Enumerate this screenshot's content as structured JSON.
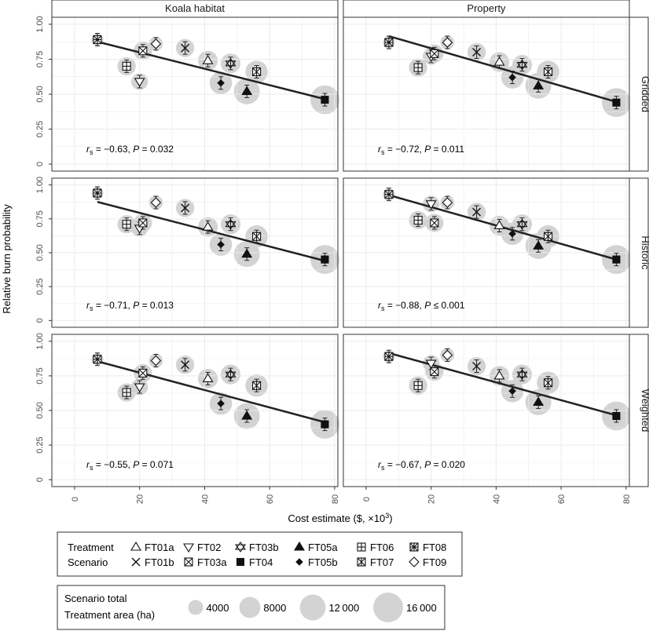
{
  "chart_data": {
    "type": "scatter",
    "xlabel": "Cost estimate ($, ×10",
    "xlabel_sup": "3",
    "xlabel_end": ")",
    "ylabel": "Relative burn probability",
    "xlim": [
      -7,
      81
    ],
    "ylim": [
      -0.05,
      1.05
    ],
    "xticks": [
      "0",
      "20",
      "40",
      "60",
      "80"
    ],
    "yticks": [
      "0",
      "0.25",
      "0.50",
      "0.75",
      "1.00"
    ],
    "columns": [
      "Koala habitat",
      "Property"
    ],
    "rows": [
      "Gridded",
      "Historic",
      "Weighted"
    ],
    "grid": true,
    "scenarios": [
      {
        "code": "FT01a",
        "cost": 41,
        "area": 7000,
        "marker": "tri-up-open"
      },
      {
        "code": "FT01b",
        "cost": 34,
        "area": 6000,
        "marker": "x"
      },
      {
        "code": "FT02",
        "cost": 20,
        "area": 5000,
        "marker": "tri-down-open"
      },
      {
        "code": "FT03a",
        "cost": 21,
        "area": 6000,
        "marker": "square-x"
      },
      {
        "code": "FT03b",
        "cost": 48,
        "area": 7000,
        "marker": "star-open"
      },
      {
        "code": "FT04",
        "cost": 77,
        "area": 15000,
        "marker": "square-filled"
      },
      {
        "code": "FT05a",
        "cost": 53,
        "area": 12000,
        "marker": "tri-up-filled"
      },
      {
        "code": "FT05b",
        "cost": 45,
        "area": 9000,
        "marker": "diamond-filled"
      },
      {
        "code": "FT06",
        "cost": 16,
        "area": 6000,
        "marker": "square-plus"
      },
      {
        "code": "FT07",
        "cost": 56,
        "area": 9000,
        "marker": "square-cross"
      },
      {
        "code": "FT08",
        "cost": 7,
        "area": 2500,
        "marker": "square-star"
      },
      {
        "code": "FT09",
        "cost": 25,
        "area": 3500,
        "marker": "diamond-open"
      }
    ],
    "panels": [
      {
        "row": "Gridded",
        "col": "Koala habitat",
        "stat_r": "= −0.63, ",
        "stat_p": " = 0.032",
        "fit": [
          0.875,
          0.465
        ],
        "y": {
          "FT01a": 0.74,
          "FT01b": 0.83,
          "FT02": 0.59,
          "FT03a": 0.81,
          "FT03b": 0.72,
          "FT04": 0.46,
          "FT05a": 0.52,
          "FT05b": 0.58,
          "FT06": 0.7,
          "FT07": 0.66,
          "FT08": 0.89,
          "FT09": 0.86
        }
      },
      {
        "row": "Gridded",
        "col": "Property",
        "stat_r": "= −0.72, ",
        "stat_p": " = 0.011",
        "fit": [
          0.915,
          0.445
        ],
        "y": {
          "FT01a": 0.73,
          "FT01b": 0.8,
          "FT02": 0.77,
          "FT03a": 0.79,
          "FT03b": 0.71,
          "FT04": 0.44,
          "FT05a": 0.56,
          "FT05b": 0.62,
          "FT06": 0.69,
          "FT07": 0.66,
          "FT08": 0.87,
          "FT09": 0.87
        }
      },
      {
        "row": "Historic",
        "col": "Koala habitat",
        "stat_r": "= −0.71, ",
        "stat_p": " = 0.013",
        "fit": [
          0.875,
          0.44
        ],
        "y": {
          "FT01a": 0.69,
          "FT01b": 0.83,
          "FT02": 0.68,
          "FT03a": 0.72,
          "FT03b": 0.71,
          "FT04": 0.45,
          "FT05a": 0.49,
          "FT05b": 0.56,
          "FT06": 0.71,
          "FT07": 0.62,
          "FT08": 0.94,
          "FT09": 0.87
        }
      },
      {
        "row": "Historic",
        "col": "Property",
        "stat_r": "= −0.88, ",
        "stat_p": " ≤ 0.001",
        "fit": [
          0.925,
          0.45
        ],
        "y": {
          "FT01a": 0.7,
          "FT01b": 0.8,
          "FT02": 0.86,
          "FT03a": 0.72,
          "FT03b": 0.71,
          "FT04": 0.45,
          "FT05a": 0.55,
          "FT05b": 0.64,
          "FT06": 0.74,
          "FT07": 0.62,
          "FT08": 0.93,
          "FT09": 0.87
        }
      },
      {
        "row": "Weighted",
        "col": "Koala habitat",
        "stat_r": "= −0.55, ",
        "stat_p": " = 0.071",
        "fit": [
          0.855,
          0.415
        ],
        "y": {
          "FT01a": 0.73,
          "FT01b": 0.83,
          "FT02": 0.67,
          "FT03a": 0.77,
          "FT03b": 0.76,
          "FT04": 0.4,
          "FT05a": 0.46,
          "FT05b": 0.55,
          "FT06": 0.63,
          "FT07": 0.68,
          "FT08": 0.87,
          "FT09": 0.86
        }
      },
      {
        "row": "Weighted",
        "col": "Property",
        "stat_r": "= −0.67, ",
        "stat_p": " = 0.020",
        "fit": [
          0.915,
          0.465
        ],
        "y": {
          "FT01a": 0.75,
          "FT01b": 0.82,
          "FT02": 0.84,
          "FT03a": 0.78,
          "FT03b": 0.76,
          "FT04": 0.46,
          "FT05a": 0.56,
          "FT05b": 0.64,
          "FT06": 0.68,
          "FT07": 0.7,
          "FT08": 0.89,
          "FT09": 0.9
        }
      }
    ],
    "legend_treatment": {
      "title_line1": "Treatment",
      "title_line2": "Scenario",
      "row1": [
        "FT01a",
        "FT02",
        "FT03b",
        "FT05a",
        "FT06",
        "FT08"
      ],
      "row2": [
        "FT01b",
        "FT03a",
        "FT04",
        "FT05b",
        "FT07",
        "FT09"
      ]
    },
    "legend_area": {
      "title_line1": "Scenario total",
      "title_line2": "Treatment area (ha)",
      "sizes": [
        4000,
        8000,
        12000,
        16000
      ],
      "labels": [
        "4000",
        "8000",
        "12 000",
        "16 000"
      ]
    },
    "colors": {
      "bubble": "#d3d3d3",
      "fit": "#222222",
      "grid": "#ebebeb",
      "strip": "#ffffff",
      "border": "#333333"
    }
  }
}
